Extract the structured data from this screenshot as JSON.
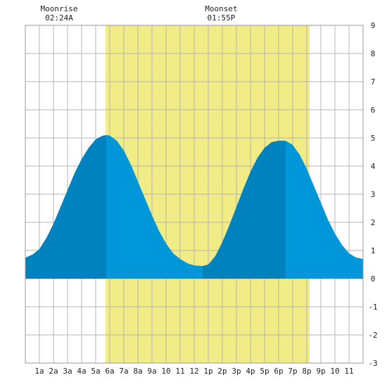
{
  "chart_data": {
    "type": "area",
    "title": "",
    "xlabel": "",
    "ylabel": "",
    "xlim": [
      0,
      24
    ],
    "ylim": [
      -3,
      9
    ],
    "grid": true,
    "x_ticks": [
      {
        "x": 1,
        "label": "1a"
      },
      {
        "x": 2,
        "label": "2a"
      },
      {
        "x": 3,
        "label": "3a"
      },
      {
        "x": 4,
        "label": "4a"
      },
      {
        "x": 5,
        "label": "5a"
      },
      {
        "x": 6,
        "label": "6a"
      },
      {
        "x": 7,
        "label": "7a"
      },
      {
        "x": 8,
        "label": "8a"
      },
      {
        "x": 9,
        "label": "9a"
      },
      {
        "x": 10,
        "label": "10"
      },
      {
        "x": 11,
        "label": "11"
      },
      {
        "x": 12,
        "label": "12"
      },
      {
        "x": 13,
        "label": "1p"
      },
      {
        "x": 14,
        "label": "2p"
      },
      {
        "x": 15,
        "label": "3p"
      },
      {
        "x": 16,
        "label": "4p"
      },
      {
        "x": 17,
        "label": "5p"
      },
      {
        "x": 18,
        "label": "6p"
      },
      {
        "x": 19,
        "label": "7p"
      },
      {
        "x": 20,
        "label": "8p"
      },
      {
        "x": 21,
        "label": "9p"
      },
      {
        "x": 22,
        "label": "10"
      },
      {
        "x": 23,
        "label": "11"
      }
    ],
    "y_ticks": [
      -3,
      -2,
      -1,
      0,
      1,
      2,
      3,
      4,
      5,
      6,
      7,
      8,
      9
    ],
    "daylight": {
      "start": 5.7,
      "end": 20.2,
      "color": "#f2ec86"
    },
    "tide_extremes": [
      {
        "x": 5.75,
        "y": 5.1,
        "kind": "high"
      },
      {
        "x": 12.6,
        "y": 0.45,
        "kind": "low"
      },
      {
        "x": 18.5,
        "y": 4.9,
        "kind": "high"
      }
    ],
    "tide_series": {
      "x": [
        0,
        0.5,
        1,
        1.5,
        2,
        2.5,
        3,
        3.5,
        4,
        4.5,
        5,
        5.5,
        5.75,
        6,
        6.5,
        7,
        7.5,
        8,
        8.5,
        9,
        9.5,
        10,
        10.5,
        11,
        11.5,
        12,
        12.5,
        12.6,
        13,
        13.5,
        14,
        14.5,
        15,
        15.5,
        16,
        16.5,
        17,
        17.5,
        18,
        18.5,
        19,
        19.5,
        20,
        20.5,
        21,
        21.5,
        22,
        22.5,
        23,
        23.5,
        24
      ],
      "y": [
        0.75,
        0.85,
        1.05,
        1.45,
        1.95,
        2.55,
        3.15,
        3.75,
        4.25,
        4.65,
        4.95,
        5.08,
        5.1,
        5.08,
        4.9,
        4.55,
        4.05,
        3.45,
        2.85,
        2.25,
        1.7,
        1.25,
        0.9,
        0.7,
        0.55,
        0.47,
        0.45,
        0.45,
        0.5,
        0.8,
        1.3,
        1.9,
        2.55,
        3.2,
        3.8,
        4.3,
        4.65,
        4.85,
        4.9,
        4.9,
        4.75,
        4.4,
        3.9,
        3.3,
        2.7,
        2.1,
        1.6,
        1.2,
        0.9,
        0.75,
        0.7
      ]
    },
    "band_colors": {
      "dark": "#0082be",
      "light": "#0096da"
    },
    "annotations": [
      {
        "name": "moonrise",
        "label": "Moonrise",
        "time": "02:24A",
        "x": 2.4
      },
      {
        "name": "moonset",
        "label": "Moonset",
        "time": "01:55P",
        "x": 13.92
      }
    ]
  }
}
